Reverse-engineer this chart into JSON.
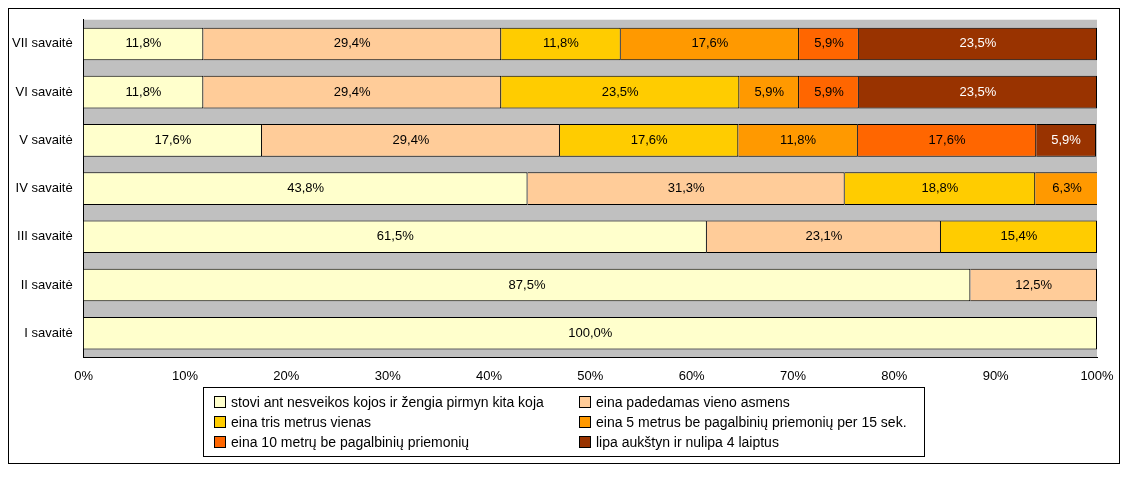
{
  "chart_data": {
    "type": "bar",
    "orientation": "horizontal",
    "stacked": true,
    "categories": [
      "VII savaitė",
      "VI savaitė",
      "V savaitė",
      "IV savaitė",
      "III savaitė",
      "II savaitė",
      "I savaitė"
    ],
    "xlim": [
      0,
      100
    ],
    "xticks": [
      {
        "value": 0,
        "label": "0%"
      },
      {
        "value": 10,
        "label": "10%"
      },
      {
        "value": 20,
        "label": "20%"
      },
      {
        "value": 30,
        "label": "30%"
      },
      {
        "value": 40,
        "label": "40%"
      },
      {
        "value": 50,
        "label": "50%"
      },
      {
        "value": 60,
        "label": "60%"
      },
      {
        "value": 70,
        "label": "70%"
      },
      {
        "value": 80,
        "label": "80%"
      },
      {
        "value": 90,
        "label": "90%"
      },
      {
        "value": 100,
        "label": "100%"
      }
    ],
    "grid": false,
    "legend": "bottom",
    "series": [
      {
        "name": "stovi ant nesveikos kojos ir žengia pirmyn kita koja",
        "color": "#ffffcc",
        "values": [
          11.8,
          11.8,
          17.6,
          43.8,
          61.5,
          87.5,
          100.0
        ],
        "value_labels": [
          "11,8%",
          "11,8%",
          "17,6%",
          "43,8%",
          "61,5%",
          "87,5%",
          "100,0%"
        ]
      },
      {
        "name": "eina padedamas vieno asmens",
        "color": "#ffcc99",
        "values": [
          29.4,
          29.4,
          29.4,
          31.3,
          23.1,
          12.5,
          null
        ],
        "value_labels": [
          "29,4%",
          "29,4%",
          "29,4%",
          "31,3%",
          "23,1%",
          "12,5%",
          null
        ]
      },
      {
        "name": "eina tris metrus vienas",
        "color": "#ffcc00",
        "values": [
          11.8,
          23.5,
          17.6,
          18.8,
          15.4,
          null,
          null
        ],
        "value_labels": [
          "11,8%",
          "23,5%",
          "17,6%",
          "18,8%",
          "15,4%",
          null,
          null
        ]
      },
      {
        "name": "eina 5 metrus be pagalbinių priemonių per 15 sek.",
        "color": "#ff9900",
        "values": [
          17.6,
          5.9,
          11.8,
          6.3,
          null,
          null,
          null
        ],
        "value_labels": [
          "17,6%",
          "5,9%",
          "11,8%",
          "6,3%",
          null,
          null,
          null
        ]
      },
      {
        "name": "eina 10 metrų be pagalbinių priemonių",
        "color": "#ff6600",
        "values": [
          5.9,
          5.9,
          17.6,
          null,
          null,
          null,
          null
        ],
        "value_labels": [
          "5,9%",
          "5,9%",
          "17,6%",
          null,
          null,
          null,
          null
        ]
      },
      {
        "name": "lipa aukštyn ir nulipa 4 laiptus",
        "color": "#993300",
        "values": [
          23.5,
          23.5,
          5.9,
          null,
          null,
          null,
          null
        ],
        "value_labels": [
          "23,5%",
          "23,5%",
          "5,9%",
          null,
          null,
          null,
          null
        ]
      }
    ]
  }
}
